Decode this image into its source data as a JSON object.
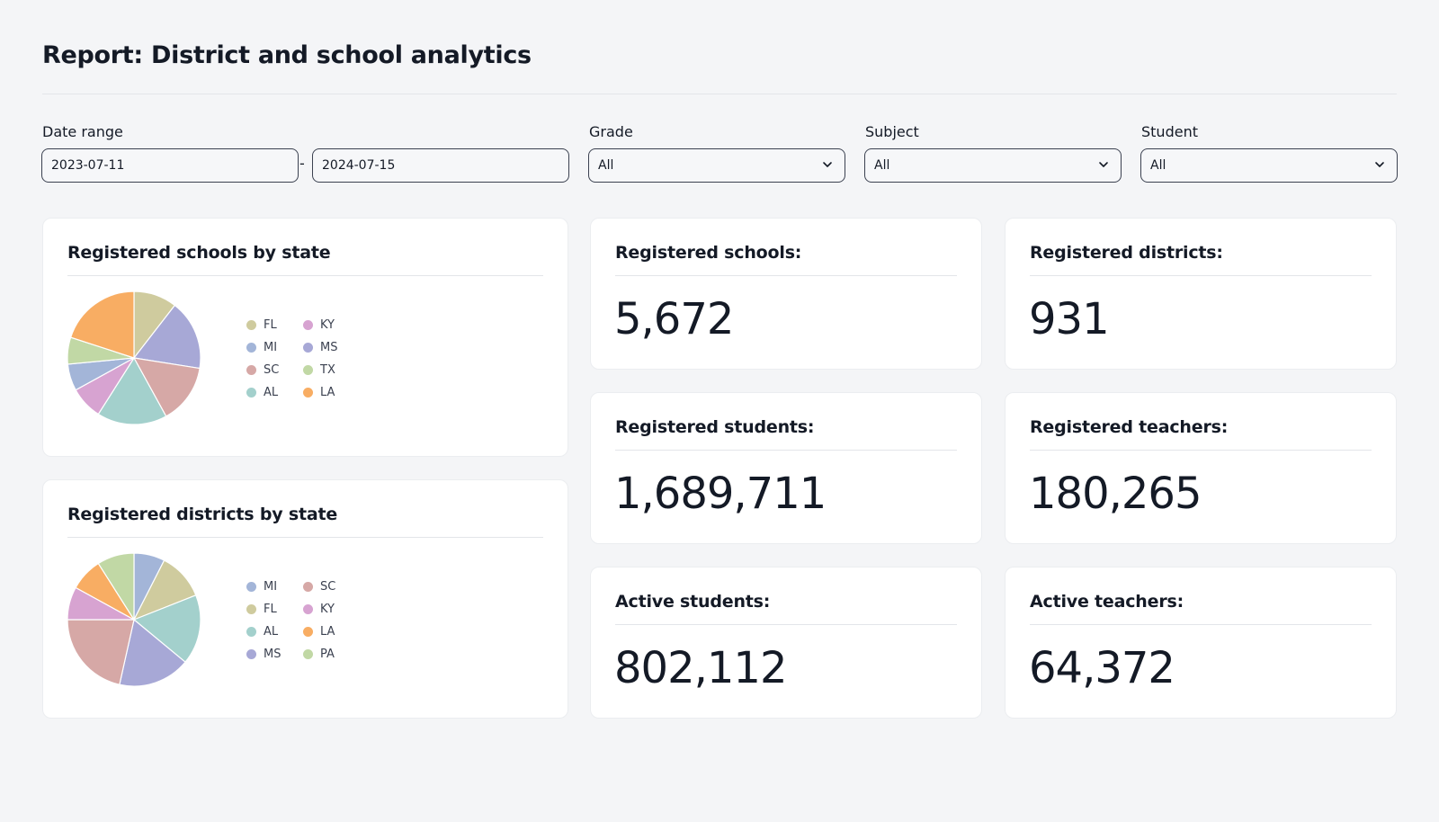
{
  "header": {
    "title": "Report: District and school analytics"
  },
  "filters": {
    "date_range": {
      "label": "Date range",
      "start": "2023-07-11",
      "separator": "-",
      "end": "2024-07-15"
    },
    "grade": {
      "label": "Grade",
      "value": "All"
    },
    "subject": {
      "label": "Subject",
      "value": "All"
    },
    "student": {
      "label": "Student",
      "value": "All"
    }
  },
  "charts": {
    "schools": {
      "title": "Registered schools by state",
      "legend": [
        {
          "label": "FL",
          "color": "#cfcb9e"
        },
        {
          "label": "KY",
          "color": "#d7a3d1"
        },
        {
          "label": "MI",
          "color": "#a3b5d8"
        },
        {
          "label": "MS",
          "color": "#a7a8d6"
        },
        {
          "label": "SC",
          "color": "#d6a8a6"
        },
        {
          "label": "TX",
          "color": "#c1d8a5"
        },
        {
          "label": "AL",
          "color": "#a3d0cc"
        },
        {
          "label": "LA",
          "color": "#f8ad63"
        }
      ]
    },
    "districts": {
      "title": "Registered districts by state",
      "legend": [
        {
          "label": "MI",
          "color": "#a3b5d8"
        },
        {
          "label": "SC",
          "color": "#d6a8a6"
        },
        {
          "label": "FL",
          "color": "#cfcb9e"
        },
        {
          "label": "KY",
          "color": "#d7a3d1"
        },
        {
          "label": "AL",
          "color": "#a3d0cc"
        },
        {
          "label": "LA",
          "color": "#f8ad63"
        },
        {
          "label": "MS",
          "color": "#a7a8d6"
        },
        {
          "label": "PA",
          "color": "#c1d8a5"
        }
      ]
    }
  },
  "chart_data": [
    {
      "type": "pie",
      "title": "Registered schools by state",
      "slices": [
        {
          "label": "FL",
          "value": 10.5,
          "color": "#cfcb9e"
        },
        {
          "label": "MS",
          "value": 17.0,
          "color": "#a7a8d6"
        },
        {
          "label": "SC",
          "value": 14.5,
          "color": "#d6a8a6"
        },
        {
          "label": "AL",
          "value": 17.0,
          "color": "#a3d0cc"
        },
        {
          "label": "KY",
          "value": 8.0,
          "color": "#d7a3d1"
        },
        {
          "label": "MI",
          "value": 6.5,
          "color": "#a3b5d8"
        },
        {
          "label": "TX",
          "value": 6.5,
          "color": "#c1d8a5"
        },
        {
          "label": "LA",
          "value": 20.0,
          "color": "#f8ad63"
        }
      ]
    },
    {
      "type": "pie",
      "title": "Registered districts by state",
      "slices": [
        {
          "label": "MI",
          "value": 7.5,
          "color": "#a3b5d8"
        },
        {
          "label": "FL",
          "value": 11.5,
          "color": "#cfcb9e"
        },
        {
          "label": "AL",
          "value": 17.0,
          "color": "#a3d0cc"
        },
        {
          "label": "MS",
          "value": 17.5,
          "color": "#a7a8d6"
        },
        {
          "label": "SC",
          "value": 21.5,
          "color": "#d6a8a6"
        },
        {
          "label": "KY",
          "value": 8.0,
          "color": "#d7a3d1"
        },
        {
          "label": "LA",
          "value": 8.0,
          "color": "#f8ad63"
        },
        {
          "label": "PA",
          "value": 9.0,
          "color": "#c1d8a5"
        }
      ]
    }
  ],
  "stats": {
    "registered_schools": {
      "label": "Registered schools:",
      "value": "5,672"
    },
    "registered_districts": {
      "label": "Registered districts:",
      "value": "931"
    },
    "registered_students": {
      "label": "Registered students:",
      "value": "1,689,711"
    },
    "registered_teachers": {
      "label": "Registered teachers:",
      "value": "180,265"
    },
    "active_students": {
      "label": "Active students:",
      "value": "802,112"
    },
    "active_teachers": {
      "label": "Active teachers:",
      "value": "64,372"
    }
  }
}
